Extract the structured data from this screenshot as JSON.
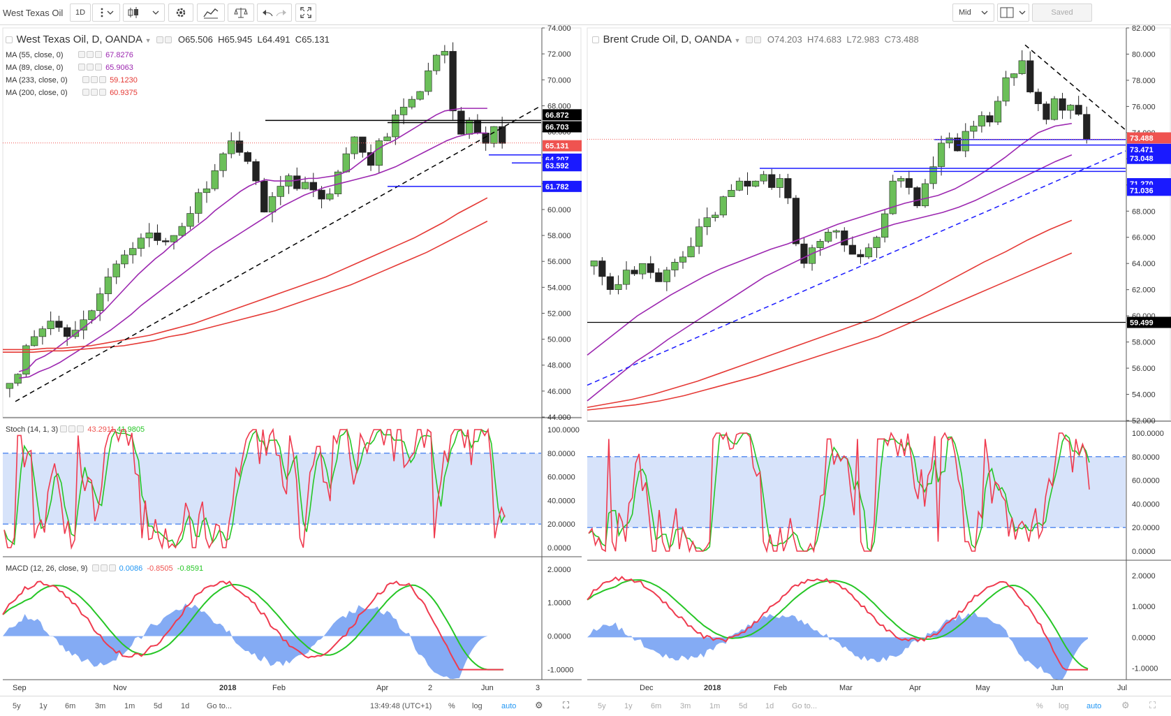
{
  "toolbar": {
    "symbol": "West Texas Oil",
    "interval": "1D",
    "mid_label": "Mid",
    "saved_label": "Saved"
  },
  "left": {
    "title": "West Texas Oil, D, OANDA",
    "ohlc": {
      "o": "O65.506",
      "h": "H65.945",
      "l": "L64.491",
      "c": "C65.131"
    },
    "ma": [
      {
        "label": "MA (55, close, 0)",
        "value": "67.8276",
        "color": "#9c27b0"
      },
      {
        "label": "MA (89, close, 0)",
        "value": "65.9063",
        "color": "#9c27b0"
      },
      {
        "label": "MA (233, close, 0)",
        "value": "59.1230",
        "color": "#e53935"
      },
      {
        "label": "MA (200, close, 0)",
        "value": "60.9375",
        "color": "#e53935"
      }
    ],
    "stoch_label": "Stoch (14, 1, 3)",
    "stoch_k": "43.2911",
    "stoch_d": "41.9805",
    "macd_label": "MACD (12, 26, close, 9)",
    "macd_hist": "0.0086",
    "macd_line": "-0.8505",
    "macd_signal": "-0.8591",
    "price_ticks": [
      "74.000",
      "72.000",
      "70.000",
      "68.000",
      "66.000",
      "64.000",
      "62.000",
      "60.000",
      "58.000",
      "56.000",
      "54.000",
      "52.000",
      "50.000",
      "48.000",
      "46.000",
      "44.000"
    ],
    "price_tags": [
      {
        "text": "66.872",
        "bg": "#000000"
      },
      {
        "text": "66.703",
        "bg": "#000000"
      },
      {
        "text": "65.131",
        "bg": "#ef5350"
      },
      {
        "text": "64.207",
        "bg": "#1a1aff"
      },
      {
        "text": "63.592",
        "bg": "#1a1aff"
      },
      {
        "text": "61.782",
        "bg": "#1a1aff"
      }
    ],
    "osc_ticks": [
      "100.0000",
      "80.0000",
      "60.0000",
      "40.0000",
      "20.0000",
      "0.0000"
    ],
    "macd_ticks": [
      "2.0000",
      "1.0000",
      "0.0000",
      "-1.0000"
    ],
    "time_labels": [
      "Sep",
      "Nov",
      "2018",
      "Feb",
      "Apr",
      "2",
      "Jun",
      "3"
    ]
  },
  "right": {
    "title": "Brent Crude Oil, D, OANDA",
    "ohlc": {
      "o": "O74.203",
      "h": "H74.683",
      "l": "L72.983",
      "c": "C73.488"
    },
    "price_ticks": [
      "82.000",
      "80.000",
      "78.000",
      "76.000",
      "74.000",
      "72.000",
      "70.000",
      "68.000",
      "66.000",
      "64.000",
      "62.000",
      "60.000",
      "58.000",
      "56.000",
      "54.000",
      "52.000"
    ],
    "price_tags": [
      {
        "text": "73.488",
        "bg": "#ef5350"
      },
      {
        "text": "73.471",
        "bg": "#1a1aff"
      },
      {
        "text": "73.048",
        "bg": "#1a1aff"
      },
      {
        "text": "71.270",
        "bg": "#1a1aff"
      },
      {
        "text": "71.036",
        "bg": "#1a1aff"
      },
      {
        "text": "59.499",
        "bg": "#000000"
      }
    ],
    "osc_ticks": [
      "100.0000",
      "80.0000",
      "60.0000",
      "40.0000",
      "20.0000",
      "0.0000"
    ],
    "macd_ticks": [
      "2.0000",
      "1.0000",
      "0.0000",
      "-1.0000"
    ],
    "time_labels": [
      "Dec",
      "2018",
      "Feb",
      "Mar",
      "Apr",
      "May",
      "Jun",
      "Jul"
    ]
  },
  "bottom": {
    "ranges": [
      "5y",
      "1y",
      "6m",
      "3m",
      "1m",
      "5d",
      "1d"
    ],
    "goto": "Go to...",
    "clock": "13:49:48 (UTC+1)",
    "pct": "%",
    "log": "log",
    "auto": "auto"
  },
  "chart_data": [
    {
      "type": "line",
      "title": "West Texas Oil, D, OANDA",
      "ylim": [
        44,
        74
      ],
      "x_labels": [
        "Sep",
        "Nov",
        "2018",
        "Feb",
        "Apr",
        "2",
        "Jun",
        "3"
      ],
      "series": [
        {
          "name": "West Texas Oil, D, OANDA",
          "values": [
            46.6,
            47.3,
            49.5,
            50.2,
            50.8,
            51.4,
            50.9,
            50.2,
            50.7,
            51.5,
            52.2,
            53.5,
            54.8,
            55.8,
            56.5,
            57.0,
            57.8,
            58.2,
            57.6,
            57.5,
            58.0,
            58.7,
            59.7,
            61.3,
            61.6,
            63.0,
            64.3,
            65.3,
            64.4,
            63.7,
            62.2,
            59.8,
            61.0,
            61.8,
            62.6,
            61.6,
            62.1,
            61.5,
            60.8,
            61.2,
            62.9,
            64.3,
            65.6,
            64.4,
            63.4,
            65.3,
            65.6,
            67.3,
            67.9,
            68.5,
            69.1,
            70.7,
            71.9,
            72.2,
            67.6,
            65.8,
            66.9,
            65.9,
            65.1,
            66.4,
            65.1
          ]
        },
        {
          "name": "MA (55, close, 0)",
          "values": [
            47.5,
            47.7,
            48.4,
            48.7,
            49.1,
            49.6,
            50.1,
            50.6,
            51.1,
            51.6,
            52.2,
            52.9,
            53.6,
            54.3,
            55.0,
            55.6,
            56.2,
            56.7,
            57.3,
            57.8,
            58.3,
            58.8,
            59.3,
            59.9,
            60.4,
            60.9,
            61.4,
            61.8,
            62.1,
            62.3,
            62.2,
            62.2,
            62.2,
            62.3,
            62.4,
            62.4,
            62.5,
            62.6,
            62.8,
            63.1,
            63.6,
            64.1,
            64.6,
            65.0,
            65.3,
            65.7,
            66.1,
            66.5,
            66.9,
            67.3,
            67.6,
            67.7,
            67.8,
            67.8,
            67.8,
            67.8
          ]
        },
        {
          "name": "MA (89, close, 0)",
          "values": [
            47.0,
            47.1,
            47.5,
            47.8,
            48.2,
            48.7,
            49.2,
            49.7,
            50.2,
            50.7,
            51.3,
            51.9,
            52.6,
            53.2,
            53.8,
            54.4,
            55.0,
            55.6,
            56.2,
            56.8,
            57.3,
            57.8,
            58.3,
            58.8,
            59.3,
            59.8,
            60.3,
            60.7,
            61.1,
            61.4,
            61.7,
            61.9,
            62.1,
            62.3,
            62.5,
            62.7,
            63.0,
            63.3,
            63.7,
            64.1,
            64.5,
            64.9,
            65.3,
            65.6,
            65.8,
            65.9,
            65.9
          ]
        },
        {
          "name": "MA (200, close, 0)",
          "values": [
            49.2,
            49.2,
            49.2,
            49.3,
            49.3,
            49.4,
            49.5,
            49.7,
            49.9,
            50.1,
            50.3,
            50.6,
            50.9,
            51.2,
            51.6,
            52.0,
            52.4,
            52.8,
            53.2,
            53.6,
            54.0,
            54.4,
            54.8,
            55.3,
            55.8,
            56.3,
            56.8,
            57.3,
            57.8,
            58.4,
            59.0,
            59.7,
            60.3,
            60.9
          ]
        },
        {
          "name": "MA (233, close, 0)",
          "values": [
            49.0,
            49.0,
            49.0,
            49.1,
            49.1,
            49.2,
            49.3,
            49.4,
            49.5,
            49.7,
            49.9,
            50.2,
            50.4,
            50.7,
            51.0,
            51.3,
            51.6,
            51.9,
            52.2,
            52.6,
            53.0,
            53.4,
            53.8,
            54.2,
            54.7,
            55.2,
            55.7,
            56.2,
            56.7,
            57.3,
            57.9,
            58.5,
            59.1
          ]
        }
      ]
    },
    {
      "type": "line",
      "title": "Brent Crude Oil, D, OANDA",
      "ylim": [
        52,
        82
      ],
      "x_labels": [
        "Dec",
        "2018",
        "Feb",
        "Mar",
        "Apr",
        "May",
        "Jun",
        "Jul"
      ],
      "series": [
        {
          "name": "Brent Crude Oil, D, OANDA",
          "values": [
            64.2,
            63.0,
            62.0,
            62.4,
            63.5,
            63.2,
            64.0,
            63.3,
            62.6,
            63.5,
            64.1,
            64.5,
            65.3,
            66.8,
            67.5,
            67.7,
            69.1,
            69.6,
            70.3,
            69.9,
            70.3,
            70.8,
            69.8,
            70.5,
            69.0,
            65.5,
            64.0,
            65.2,
            65.7,
            66.4,
            66.5,
            65.4,
            64.7,
            64.5,
            65.2,
            66.0,
            67.8,
            70.3,
            70.5,
            69.8,
            68.4,
            70.1,
            71.4,
            73.2,
            73.6,
            72.6,
            74.1,
            74.5,
            75.3,
            74.8,
            76.4,
            78.2,
            78.5,
            79.5,
            77.1,
            76.2,
            75.0,
            76.6,
            75.7,
            76.1,
            75.4,
            73.5
          ]
        },
        {
          "name": "MA (55, close, 0)",
          "values": [
            57.0,
            58.0,
            59.0,
            60.0,
            60.8,
            61.6,
            62.3,
            63.0,
            63.6,
            64.1,
            64.6,
            65.1,
            65.5,
            66.0,
            66.5,
            67.0,
            67.4,
            67.8,
            68.2,
            68.6,
            68.9,
            69.2,
            69.7,
            70.4,
            71.2,
            72.1,
            73.1,
            74.0,
            74.5,
            74.7
          ]
        },
        {
          "name": "MA (89, close, 0)",
          "values": [
            53.5,
            54.5,
            55.5,
            56.5,
            57.3,
            58.2,
            59.0,
            59.8,
            60.6,
            61.4,
            62.2,
            63.0,
            63.6,
            64.2,
            64.8,
            65.3,
            65.8,
            66.2,
            66.6,
            67.0,
            67.3,
            67.6,
            67.9,
            68.3,
            68.8,
            69.4,
            70.0,
            70.6,
            71.2,
            71.8,
            72.3
          ]
        },
        {
          "name": "MA (200, close, 0)",
          "values": [
            53.0,
            53.3,
            53.6,
            54.0,
            54.5,
            55.0,
            55.6,
            56.2,
            56.8,
            57.4,
            58.0,
            58.6,
            59.2,
            59.8,
            60.6,
            61.4,
            62.3,
            63.2,
            64.1,
            64.9,
            65.8,
            66.6,
            67.3
          ]
        },
        {
          "name": "MA (233, close, 0)",
          "values": [
            52.8,
            53.0,
            53.2,
            53.5,
            53.9,
            54.4,
            54.9,
            55.4,
            56.0,
            56.6,
            57.2,
            57.8,
            58.4,
            59.2,
            60.0,
            60.8,
            61.6,
            62.4,
            63.2,
            64.0,
            64.8
          ]
        }
      ]
    }
  ]
}
